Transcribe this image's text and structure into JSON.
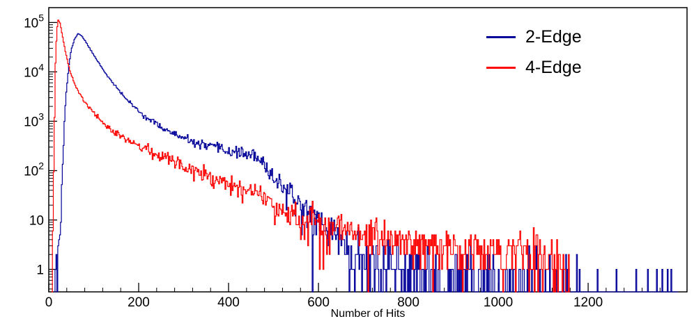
{
  "chart_data": {
    "type": "line",
    "title": "",
    "xlabel": "Number of Hits",
    "ylabel": "",
    "y_scale": "log",
    "grid": false,
    "legend_position": "top-right",
    "xlim": [
      0,
      1420
    ],
    "ylim": [
      0.35,
      200000
    ],
    "x_ticks": [
      0,
      200,
      400,
      600,
      800,
      1000,
      1200
    ],
    "x_minor_step": 40,
    "y_ticks": [
      1,
      10,
      100,
      1000,
      10000,
      100000
    ],
    "y_tick_labels": [
      "1",
      "10",
      "10^2",
      "10^3",
      "10^4",
      "10^5"
    ],
    "bin_width": 2,
    "noise_seed": 11,
    "series": [
      {
        "name": "2-Edge",
        "color": "#000099",
        "anchors": [
          [
            12,
            0.5
          ],
          [
            20,
            1.5
          ],
          [
            26,
            8
          ],
          [
            30,
            80
          ],
          [
            34,
            600
          ],
          [
            38,
            3000
          ],
          [
            44,
            12000
          ],
          [
            50,
            28000
          ],
          [
            57,
            45000
          ],
          [
            65,
            60000
          ],
          [
            72,
            55000
          ],
          [
            80,
            44000
          ],
          [
            90,
            31000
          ],
          [
            100,
            22000
          ],
          [
            112,
            15000
          ],
          [
            126,
            9500
          ],
          [
            142,
            6000
          ],
          [
            160,
            3800
          ],
          [
            180,
            2400
          ],
          [
            200,
            1600
          ],
          [
            220,
            1150
          ],
          [
            240,
            870
          ],
          [
            260,
            680
          ],
          [
            280,
            540
          ],
          [
            300,
            440
          ],
          [
            320,
            380
          ],
          [
            340,
            330
          ],
          [
            360,
            300
          ],
          [
            380,
            275
          ],
          [
            400,
            250
          ],
          [
            415,
            235
          ],
          [
            430,
            225
          ],
          [
            445,
            215
          ],
          [
            458,
            195
          ],
          [
            470,
            150
          ],
          [
            485,
            105
          ],
          [
            500,
            78
          ],
          [
            515,
            54
          ],
          [
            530,
            38
          ],
          [
            545,
            27
          ],
          [
            560,
            20
          ],
          [
            580,
            14
          ],
          [
            600,
            10
          ],
          [
            620,
            7
          ],
          [
            640,
            4.8
          ],
          [
            660,
            3.3
          ],
          [
            680,
            2.3
          ],
          [
            700,
            1.7
          ],
          [
            730,
            1.3
          ],
          [
            770,
            1.0
          ],
          [
            820,
            0.8
          ],
          [
            880,
            0.65
          ],
          [
            950,
            0.55
          ],
          [
            1020,
            0.45
          ],
          [
            1090,
            0.4
          ],
          [
            1150,
            0.35
          ],
          [
            1170,
            0.12
          ],
          [
            1250,
            0.08
          ],
          [
            1330,
            0.07
          ],
          [
            1400,
            0.06
          ]
        ]
      },
      {
        "name": "4-Edge",
        "color": "#ff0000",
        "anchors": [
          [
            6,
            0.5
          ],
          [
            9,
            5
          ],
          [
            12,
            400
          ],
          [
            15,
            15000
          ],
          [
            18,
            70000
          ],
          [
            21,
            112000
          ],
          [
            25,
            98000
          ],
          [
            29,
            62000
          ],
          [
            34,
            36000
          ],
          [
            40,
            19000
          ],
          [
            47,
            10500
          ],
          [
            55,
            6500
          ],
          [
            64,
            4300
          ],
          [
            74,
            3000
          ],
          [
            85,
            2200
          ],
          [
            95,
            1700
          ],
          [
            105,
            1300
          ],
          [
            115,
            1050
          ],
          [
            130,
            800
          ],
          [
            145,
            640
          ],
          [
            160,
            520
          ],
          [
            180,
            400
          ],
          [
            200,
            320
          ],
          [
            220,
            260
          ],
          [
            240,
            215
          ],
          [
            260,
            180
          ],
          [
            280,
            150
          ],
          [
            300,
            125
          ],
          [
            320,
            105
          ],
          [
            340,
            90
          ],
          [
            360,
            77
          ],
          [
            380,
            66
          ],
          [
            400,
            57
          ],
          [
            420,
            49
          ],
          [
            440,
            42
          ],
          [
            460,
            36
          ],
          [
            480,
            31
          ],
          [
            500,
            20
          ],
          [
            520,
            17
          ],
          [
            545,
            14
          ],
          [
            570,
            11
          ],
          [
            600,
            9
          ],
          [
            630,
            7.5
          ],
          [
            660,
            6.5
          ],
          [
            690,
            5.5
          ],
          [
            720,
            4.8
          ],
          [
            760,
            4.2
          ],
          [
            800,
            3.7
          ],
          [
            850,
            3.3
          ],
          [
            900,
            3.0
          ],
          [
            950,
            2.7
          ],
          [
            1000,
            2.4
          ],
          [
            1050,
            2.1
          ],
          [
            1100,
            1.9
          ],
          [
            1140,
            1.6
          ],
          [
            1152,
            0.8
          ],
          [
            1160,
            0.3
          ]
        ]
      }
    ]
  }
}
